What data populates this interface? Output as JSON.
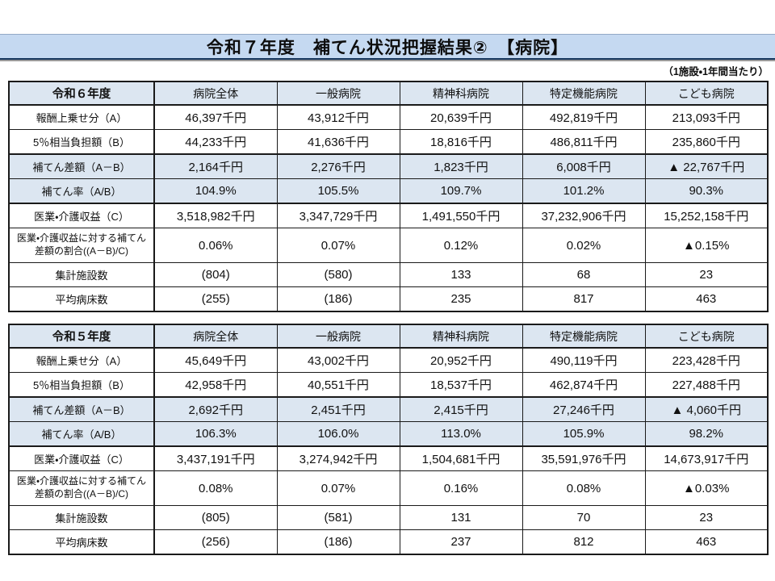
{
  "title": "令和７年度　補てん状況把握結果②　【病院】",
  "note": "（1施設・1年間当たり）",
  "colors": {
    "title_bar": "#C5D9F1",
    "header_fill": "#DCE6F1",
    "shaded_row": "#DCE6F1",
    "border": "#1a1a1a",
    "title_underline": "#17375E"
  },
  "tables": [
    {
      "year_label": "令和６年度",
      "columns": [
        "病院全体",
        "一般病院",
        "精神科病院",
        "特定機能病院",
        "こども病院"
      ],
      "rows": [
        {
          "label": "報酬上乗せ分（A）",
          "values": [
            "46,397千円",
            "43,912千円",
            "20,639千円",
            "492,819千円",
            "213,093千円"
          ],
          "shaded": false
        },
        {
          "label": "5％相当負担額（B）",
          "values": [
            "44,233千円",
            "41,636千円",
            "18,816千円",
            "486,811千円",
            "235,860千円"
          ],
          "shaded": false
        },
        {
          "label": "補てん差額（A－B）",
          "values": [
            "2,164千円",
            "2,276千円",
            "1,823千円",
            "6,008千円",
            "▲ 22,767千円"
          ],
          "shaded": true,
          "thick_top": true
        },
        {
          "label": "補てん率（A/B）",
          "values": [
            "104.9%",
            "105.5%",
            "109.7%",
            "101.2%",
            "90.3%"
          ],
          "shaded": true,
          "thick_bottom": true
        },
        {
          "label": "医業・介護収益（C）",
          "values": [
            "3,518,982千円",
            "3,347,729千円",
            "1,491,550千円",
            "37,232,906千円",
            "15,252,158千円"
          ],
          "shaded": false
        },
        {
          "label": "医業・介護収益に対する補てん差額の割合((A－B)/C)",
          "values": [
            "0.06%",
            "0.07%",
            "0.12%",
            "0.02%",
            "▲0.15%"
          ],
          "shaded": false,
          "tall": true
        },
        {
          "label": "集計施設数",
          "values": [
            "(804)",
            "(580)",
            "133",
            "68",
            "23"
          ],
          "shaded": false
        },
        {
          "label": "平均病床数",
          "values": [
            "(255)",
            "(186)",
            "235",
            "817",
            "463"
          ],
          "shaded": false
        }
      ]
    },
    {
      "year_label": "令和５年度",
      "columns": [
        "病院全体",
        "一般病院",
        "精神科病院",
        "特定機能病院",
        "こども病院"
      ],
      "rows": [
        {
          "label": "報酬上乗せ分（A）",
          "values": [
            "45,649千円",
            "43,002千円",
            "20,952千円",
            "490,119千円",
            "223,428千円"
          ],
          "shaded": false
        },
        {
          "label": "5％相当負担額（B）",
          "values": [
            "42,958千円",
            "40,551千円",
            "18,537千円",
            "462,874千円",
            "227,488千円"
          ],
          "shaded": false
        },
        {
          "label": "補てん差額（A－B）",
          "values": [
            "2,692千円",
            "2,451千円",
            "2,415千円",
            "27,246千円",
            "▲ 4,060千円"
          ],
          "shaded": true,
          "thick_top": true
        },
        {
          "label": "補てん率（A/B）",
          "values": [
            "106.3%",
            "106.0%",
            "113.0%",
            "105.9%",
            "98.2%"
          ],
          "shaded": true,
          "thick_bottom": true
        },
        {
          "label": "医業・介護収益（C）",
          "values": [
            "3,437,191千円",
            "3,274,942千円",
            "1,504,681千円",
            "35,591,976千円",
            "14,673,917千円"
          ],
          "shaded": false
        },
        {
          "label": "医業・介護収益に対する補てん差額の割合((A－B)/C)",
          "values": [
            "0.08%",
            "0.07%",
            "0.16%",
            "0.08%",
            "▲0.03%"
          ],
          "shaded": false,
          "tall": true
        },
        {
          "label": "集計施設数",
          "values": [
            "(805)",
            "(581)",
            "131",
            "70",
            "23"
          ],
          "shaded": false
        },
        {
          "label": "平均病床数",
          "values": [
            "(256)",
            "(186)",
            "237",
            "812",
            "463"
          ],
          "shaded": false
        }
      ]
    }
  ]
}
